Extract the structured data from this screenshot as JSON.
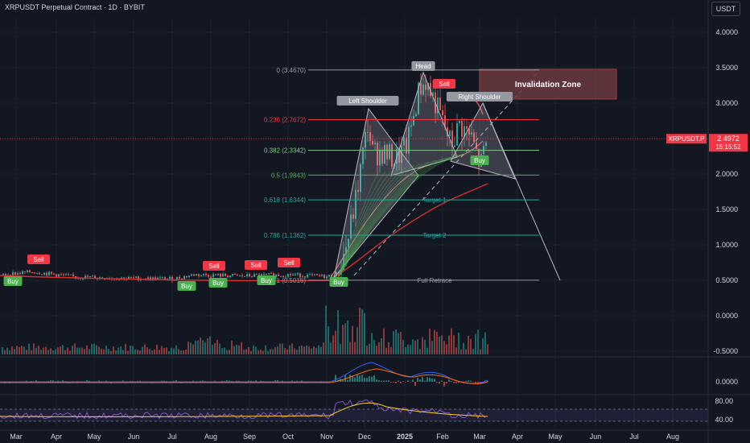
{
  "chart_title": "XRPUSDT Perpetual Contract · 1D · BYBIT",
  "currency_button": "USDT",
  "price_axis": [
    "4.0000",
    "3.5000",
    "3.0000",
    "2.5000",
    "2.0000",
    "1.5000",
    "1.0000",
    "0.5000",
    "0.0000",
    "-0.5000"
  ],
  "macd_axis": [
    "0.0000"
  ],
  "rsi_axis": [
    "80.00",
    "40.00"
  ],
  "time_axis": [
    "Mar",
    "Apr",
    "May",
    "Jun",
    "Jul",
    "Aug",
    "Sep",
    "Oct",
    "Nov",
    "Dec",
    "2025",
    "Feb",
    "Mar",
    "Apr",
    "May",
    "Jun",
    "Jul",
    "Aug"
  ],
  "last_price": {
    "symbol": "XRPUSDT.P",
    "value": "2.4972",
    "countdown": "15:15:52"
  },
  "fib_levels": [
    {
      "label": "0 (3.4670)",
      "price": 3.467,
      "color": "#9598a1"
    },
    {
      "label": "0.236 (2.7672)",
      "price": 2.7672,
      "color": "#f23645"
    },
    {
      "label": "0.382 (2.3342)",
      "price": 2.3342,
      "color": "#81c784"
    },
    {
      "label": "0.5 (1.9843)",
      "price": 1.9843,
      "color": "#4caf50"
    },
    {
      "label": "0.618 (1.6344)",
      "price": 1.6344,
      "color": "#26a69a"
    },
    {
      "label": "0.786 (1.1362)",
      "price": 1.1362,
      "color": "#26a69a"
    },
    {
      "label": "1 (0.5016)",
      "price": 0.5016,
      "color": "#9598a1"
    }
  ],
  "pattern_labels": {
    "head": "Head",
    "left_shoulder": "Left Shoulder",
    "right_shoulder": "Right Shoulder",
    "invalidation_zone": "Invalidation Zone",
    "target1": "Target 1",
    "target2": "Target 2",
    "full_retrace": "Full Retrace"
  },
  "signals": [
    {
      "text": "Buy",
      "kind": "buy"
    },
    {
      "text": "Sell",
      "kind": "sell"
    },
    {
      "text": "Buy",
      "kind": "buy"
    },
    {
      "text": "Sell",
      "kind": "sell"
    },
    {
      "text": "Buy",
      "kind": "buy"
    },
    {
      "text": "Sell",
      "kind": "sell"
    },
    {
      "text": "Buy",
      "kind": "buy"
    },
    {
      "text": "Sell",
      "kind": "sell"
    },
    {
      "text": "Buy",
      "kind": "buy"
    },
    {
      "text": "Sell",
      "kind": "sell"
    },
    {
      "text": "Buy",
      "kind": "buy"
    }
  ],
  "colors": {
    "background": "#131722",
    "grid": "#1e222d",
    "buy": "#4caf50",
    "sell": "#f23645",
    "up": "#26a69a",
    "down": "#ef5350",
    "pattern_fill": "#b2b5be",
    "invalidation_fill": "#6b3a3e",
    "last_price_tag": "#f23645"
  }
}
